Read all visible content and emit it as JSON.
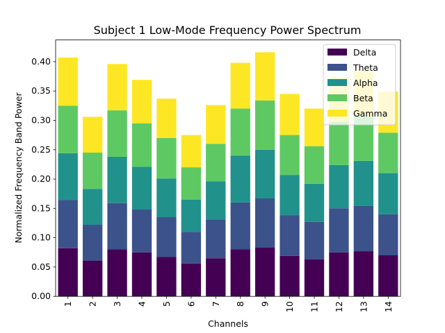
{
  "chart_data": {
    "type": "bar",
    "stacked": true,
    "title": "Subject 1 Low-Mode Frequency Power Spectrum",
    "xlabel": "Channels",
    "ylabel": "Normalized Frequency Band Power",
    "ylim": [
      0,
      0.437
    ],
    "yticks": [
      "0.00",
      "0.05",
      "0.10",
      "0.15",
      "0.20",
      "0.25",
      "0.30",
      "0.35",
      "0.40"
    ],
    "categories": [
      "1",
      "2",
      "3",
      "4",
      "5",
      "6",
      "7",
      "8",
      "9",
      "10",
      "11",
      "12",
      "13",
      "14"
    ],
    "legend_position": "top-right",
    "grid": false,
    "series": [
      {
        "name": "Delta",
        "color": "#440154",
        "values": [
          0.082,
          0.061,
          0.08,
          0.075,
          0.067,
          0.056,
          0.065,
          0.08,
          0.083,
          0.069,
          0.063,
          0.075,
          0.077,
          0.07
        ]
      },
      {
        "name": "Theta",
        "color": "#3b528b",
        "values": [
          0.082,
          0.061,
          0.079,
          0.073,
          0.068,
          0.054,
          0.066,
          0.08,
          0.084,
          0.069,
          0.064,
          0.075,
          0.077,
          0.07
        ]
      },
      {
        "name": "Alpha",
        "color": "#21918c",
        "values": [
          0.08,
          0.061,
          0.079,
          0.073,
          0.066,
          0.055,
          0.065,
          0.08,
          0.083,
          0.069,
          0.065,
          0.074,
          0.077,
          0.07
        ]
      },
      {
        "name": "Beta",
        "color": "#5ec962",
        "values": [
          0.081,
          0.062,
          0.079,
          0.074,
          0.069,
          0.055,
          0.064,
          0.08,
          0.084,
          0.068,
          0.064,
          0.074,
          0.076,
          0.069
        ]
      },
      {
        "name": "Gamma",
        "color": "#fde725",
        "values": [
          0.082,
          0.061,
          0.079,
          0.074,
          0.067,
          0.055,
          0.066,
          0.078,
          0.082,
          0.07,
          0.064,
          0.075,
          0.077,
          0.07
        ]
      }
    ]
  }
}
